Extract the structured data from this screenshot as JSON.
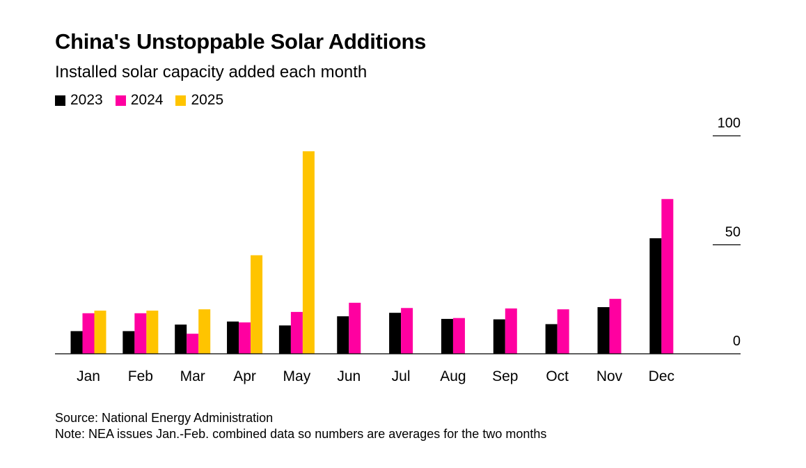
{
  "chart_data": {
    "type": "bar",
    "title": "China's Unstoppable Solar Additions",
    "subtitle": "Installed solar capacity added each month",
    "categories": [
      "Jan",
      "Feb",
      "Mar",
      "Apr",
      "May",
      "Jun",
      "Jul",
      "Aug",
      "Sep",
      "Oct",
      "Nov",
      "Dec"
    ],
    "series": [
      {
        "name": "2023",
        "color": "#000000",
        "values": [
          10.4,
          10.4,
          13.4,
          14.8,
          13.0,
          17.2,
          18.8,
          16.0,
          15.8,
          13.6,
          21.4,
          53.0
        ]
      },
      {
        "name": "2024",
        "color": "#ff00a0",
        "values": [
          18.6,
          18.6,
          9.2,
          14.4,
          19.2,
          23.4,
          21.0,
          16.4,
          20.8,
          20.4,
          25.2,
          71.0
        ]
      },
      {
        "name": "2025",
        "color": "#ffc400",
        "values": [
          19.8,
          19.8,
          20.4,
          45.2,
          92.9,
          null,
          null,
          null,
          null,
          null,
          null,
          null
        ]
      }
    ],
    "yticks": [
      0,
      50,
      100
    ],
    "ylim": [
      0,
      100
    ],
    "xlabel": "",
    "ylabel": "",
    "source": "Source: National Energy Administration",
    "note": "Note: NEA issues Jan.-Feb. combined data so numbers are averages for the two months"
  }
}
